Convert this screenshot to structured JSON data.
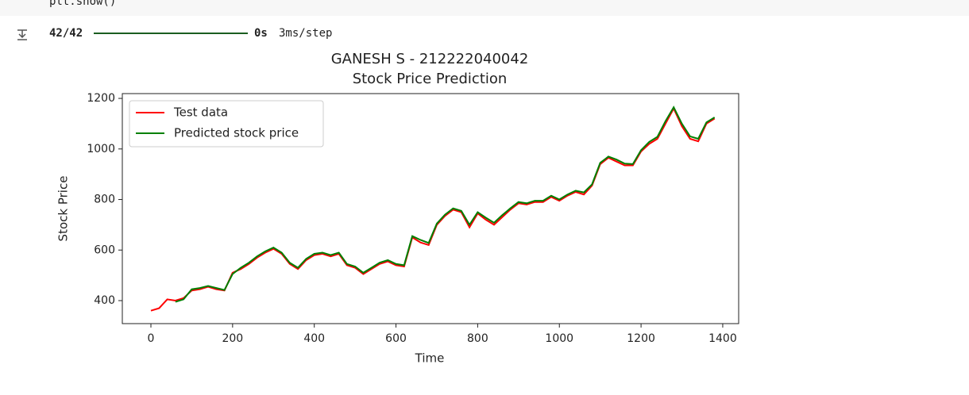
{
  "notebook": {
    "code": "plt.show()",
    "progress": "42/42",
    "time": "0s",
    "rate": "3ms/step"
  },
  "chart_data": {
    "type": "line",
    "title": "GANESH S - 212222040042",
    "subtitle": "Stock Price Prediction",
    "x_label": "Time",
    "y_label": "Stock Price",
    "x": [
      0,
      20,
      40,
      60,
      80,
      100,
      120,
      140,
      160,
      180,
      200,
      220,
      240,
      260,
      280,
      300,
      320,
      340,
      360,
      380,
      400,
      420,
      440,
      460,
      480,
      500,
      520,
      540,
      560,
      580,
      600,
      620,
      640,
      660,
      680,
      700,
      720,
      740,
      760,
      780,
      800,
      820,
      840,
      860,
      880,
      900,
      920,
      940,
      960,
      980,
      1000,
      1020,
      1040,
      1060,
      1080,
      1100,
      1120,
      1140,
      1160,
      1180,
      1200,
      1220,
      1240,
      1260,
      1280,
      1300,
      1320,
      1340,
      1360,
      1380
    ],
    "series": [
      {
        "name": "Test data",
        "color": "#ff0000",
        "values": [
          360,
          370,
          405,
          400,
          410,
          440,
          445,
          455,
          445,
          440,
          510,
          525,
          545,
          570,
          590,
          605,
          585,
          545,
          525,
          560,
          580,
          585,
          575,
          585,
          540,
          530,
          505,
          525,
          545,
          555,
          540,
          535,
          650,
          630,
          620,
          700,
          735,
          760,
          750,
          690,
          745,
          720,
          700,
          730,
          760,
          785,
          780,
          790,
          790,
          810,
          795,
          815,
          830,
          820,
          855,
          940,
          965,
          950,
          935,
          935,
          990,
          1020,
          1040,
          1100,
          1160,
          1090,
          1040,
          1030,
          1100,
          1120
        ]
      },
      {
        "name": "Predicted stock price",
        "color": "#008000",
        "values": [
          null,
          null,
          null,
          395,
          405,
          445,
          450,
          458,
          450,
          442,
          505,
          530,
          550,
          575,
          595,
          610,
          590,
          550,
          530,
          565,
          585,
          590,
          580,
          590,
          545,
          535,
          510,
          530,
          550,
          560,
          545,
          540,
          655,
          640,
          628,
          705,
          740,
          765,
          755,
          700,
          750,
          728,
          708,
          738,
          765,
          790,
          785,
          795,
          795,
          815,
          800,
          820,
          835,
          828,
          860,
          945,
          970,
          958,
          942,
          940,
          995,
          1028,
          1048,
          1110,
          1165,
          1100,
          1050,
          1040,
          1105,
          1125
        ]
      }
    ],
    "xlim": [
      -70,
      1439
    ],
    "ylim": [
      309,
      1219
    ],
    "xticks": [
      0,
      200,
      400,
      600,
      800,
      1000,
      1200,
      1400
    ],
    "yticks": [
      400,
      600,
      800,
      1000,
      1200
    ],
    "legend": "upper left"
  }
}
